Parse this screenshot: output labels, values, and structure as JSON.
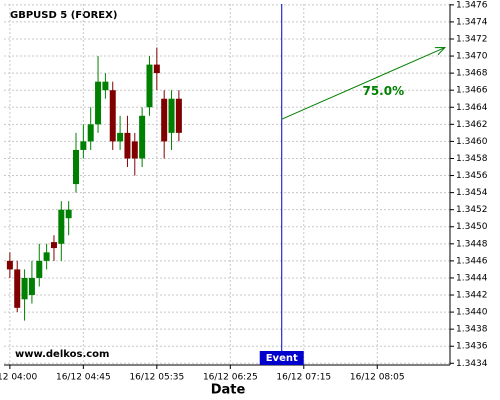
{
  "chart_data": {
    "type": "candlestick",
    "title": "GBPUSD 5 (FOREX)",
    "watermark": "www.delkos.com",
    "x_label": "Date",
    "up_color": "#008000",
    "down_color": "#800000",
    "grid": true,
    "xlim": [
      -0.8,
      59.9
    ],
    "ylim": [
      1.34338,
      1.34761
    ],
    "xticks": [
      {
        "value": 0,
        "label": "16/12 04:00"
      },
      {
        "value": 10,
        "label": "16/12 04:45"
      },
      {
        "value": 20,
        "label": "16/12 05:35"
      },
      {
        "value": 30,
        "label": "16/12 06:25"
      },
      {
        "value": 40,
        "label": "16/12 07:15"
      },
      {
        "value": 50,
        "label": "16/12 08:05"
      }
    ],
    "yticks": [
      1.3434,
      1.3436,
      1.3438,
      {
        "value": 1.344,
        "label": "1.3440"
      },
      1.3442,
      1.3444,
      1.3446,
      1.3448,
      {
        "value": 1.345,
        "label": "1.3450"
      },
      1.3452,
      1.3454,
      1.3456,
      1.3458,
      {
        "value": 1.346,
        "label": "1.3460"
      },
      1.3462,
      1.3464,
      1.3466,
      1.3468,
      {
        "value": 1.347,
        "label": "1.3470"
      },
      1.3472,
      1.3474,
      1.3476
    ],
    "candles": [
      {
        "x": 0,
        "open": 1.3446,
        "high": 1.3447,
        "low": 1.3444,
        "close": 1.3445
      },
      {
        "x": 1,
        "open": 1.3445,
        "high": 1.3446,
        "low": 1.344,
        "close": 1.34405
      },
      {
        "x": 2,
        "open": 1.34415,
        "high": 1.3445,
        "low": 1.3439,
        "close": 1.3444
      },
      {
        "x": 3,
        "open": 1.3442,
        "high": 1.3446,
        "low": 1.3441,
        "close": 1.3444
      },
      {
        "x": 4,
        "open": 1.3444,
        "high": 1.3448,
        "low": 1.3443,
        "close": 1.3446
      },
      {
        "x": 5,
        "open": 1.3446,
        "high": 1.3448,
        "low": 1.3445,
        "close": 1.3447
      },
      {
        "x": 6,
        "open": 1.34482,
        "high": 1.3449,
        "low": 1.3446,
        "close": 1.34475
      },
      {
        "x": 7,
        "open": 1.3448,
        "high": 1.3453,
        "low": 1.3446,
        "close": 1.3452
      },
      {
        "x": 8,
        "open": 1.3451,
        "high": 1.3453,
        "low": 1.3449,
        "close": 1.3452
      },
      {
        "x": 9,
        "open": 1.3455,
        "high": 1.3461,
        "low": 1.3454,
        "close": 1.3459
      },
      {
        "x": 10,
        "open": 1.3459,
        "high": 1.3462,
        "low": 1.3458,
        "close": 1.346
      },
      {
        "x": 11,
        "open": 1.346,
        "high": 1.3464,
        "low": 1.3459,
        "close": 1.3462
      },
      {
        "x": 12,
        "open": 1.3462,
        "high": 1.347,
        "low": 1.3461,
        "close": 1.3467
      },
      {
        "x": 13,
        "open": 1.3466,
        "high": 1.3468,
        "low": 1.3465,
        "close": 1.3467
      },
      {
        "x": 14,
        "open": 1.3466,
        "high": 1.3467,
        "low": 1.3459,
        "close": 1.346
      },
      {
        "x": 15,
        "open": 1.346,
        "high": 1.3463,
        "low": 1.3459,
        "close": 1.3461
      },
      {
        "x": 16,
        "open": 1.3461,
        "high": 1.3463,
        "low": 1.3457,
        "close": 1.3458
      },
      {
        "x": 17,
        "open": 1.346,
        "high": 1.3461,
        "low": 1.3456,
        "close": 1.3458
      },
      {
        "x": 18,
        "open": 1.3458,
        "high": 1.3464,
        "low": 1.3457,
        "close": 1.3463
      },
      {
        "x": 19,
        "open": 1.3464,
        "high": 1.347,
        "low": 1.3463,
        "close": 1.3469
      },
      {
        "x": 20,
        "open": 1.3469,
        "high": 1.3471,
        "low": 1.3466,
        "close": 1.3468
      },
      {
        "x": 21,
        "open": 1.3465,
        "high": 1.3466,
        "low": 1.3458,
        "close": 1.346
      },
      {
        "x": 22,
        "open": 1.3461,
        "high": 1.3466,
        "low": 1.3459,
        "close": 1.3465
      },
      {
        "x": 23,
        "open": 1.3465,
        "high": 1.3466,
        "low": 1.346,
        "close": 1.3461
      }
    ],
    "event": {
      "label": "Event",
      "x": 37,
      "color": "#0000cc"
    },
    "forecast": {
      "label": "75.0%",
      "color": "#008000",
      "x": [
        37,
        59.2
      ],
      "y": [
        1.34626,
        1.3471
      ]
    }
  }
}
